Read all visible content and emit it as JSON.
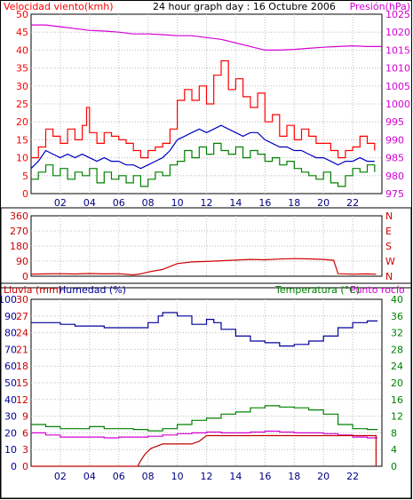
{
  "chart_data": [
    {
      "type": "line",
      "title": "24 hour graph day : 16 Octubre 2006",
      "left_label": "Velocidad viento(kmh)",
      "right_label": "Presión(hPa)",
      "x_ticks": [
        "02",
        "04",
        "06",
        "08",
        "10",
        "12",
        "14",
        "16",
        "18",
        "20",
        "22"
      ],
      "y_left_ticks": [
        "0",
        "5",
        "10",
        "15",
        "20",
        "25",
        "30",
        "35",
        "40",
        "45",
        "50"
      ],
      "y_left_range": [
        0,
        50
      ],
      "y_right_ticks": [
        "975",
        "980",
        "985",
        "990",
        "995",
        "1000",
        "1005",
        "1010",
        "1015",
        "1020",
        "1025"
      ],
      "y_right_range": [
        975,
        1025
      ],
      "x_range": [
        0,
        24
      ],
      "colors": {
        "gust": "#ff0000",
        "average": "#0000c0",
        "minimum": "#008000",
        "pressure": "#d400d4"
      },
      "gust": [
        [
          0,
          10
        ],
        [
          0.5,
          13
        ],
        [
          1,
          18
        ],
        [
          1.5,
          16
        ],
        [
          2,
          14
        ],
        [
          2.5,
          18
        ],
        [
          3,
          15
        ],
        [
          3.5,
          19
        ],
        [
          3.8,
          24
        ],
        [
          4,
          17
        ],
        [
          4.5,
          14
        ],
        [
          5,
          17
        ],
        [
          5.5,
          16
        ],
        [
          6,
          15
        ],
        [
          6.5,
          14
        ],
        [
          7,
          12
        ],
        [
          7.5,
          10
        ],
        [
          8,
          12
        ],
        [
          8.5,
          13
        ],
        [
          9,
          14
        ],
        [
          9.5,
          18
        ],
        [
          10,
          26
        ],
        [
          10.5,
          29
        ],
        [
          11,
          26
        ],
        [
          11.5,
          30
        ],
        [
          12,
          25
        ],
        [
          12.5,
          33
        ],
        [
          13,
          37
        ],
        [
          13.5,
          29
        ],
        [
          14,
          32
        ],
        [
          14.5,
          27
        ],
        [
          15,
          24
        ],
        [
          15.5,
          28
        ],
        [
          16,
          20
        ],
        [
          16.5,
          22
        ],
        [
          17,
          16
        ],
        [
          17.5,
          19
        ],
        [
          18,
          15
        ],
        [
          18.5,
          18
        ],
        [
          19,
          16
        ],
        [
          19.5,
          14
        ],
        [
          20,
          14
        ],
        [
          20.5,
          12
        ],
        [
          21,
          10
        ],
        [
          21.5,
          12
        ],
        [
          22,
          13
        ],
        [
          22.5,
          16
        ],
        [
          23,
          14
        ],
        [
          23.5,
          12
        ]
      ],
      "average": [
        [
          0,
          7
        ],
        [
          0.5,
          9
        ],
        [
          1,
          12
        ],
        [
          1.5,
          11
        ],
        [
          2,
          10
        ],
        [
          2.5,
          11
        ],
        [
          3,
          10
        ],
        [
          3.5,
          11
        ],
        [
          4,
          10
        ],
        [
          4.5,
          9
        ],
        [
          5,
          10
        ],
        [
          5.5,
          9
        ],
        [
          6,
          9
        ],
        [
          6.5,
          8
        ],
        [
          7,
          8
        ],
        [
          7.5,
          7
        ],
        [
          8,
          8
        ],
        [
          8.5,
          9
        ],
        [
          9,
          10
        ],
        [
          9.5,
          12
        ],
        [
          10,
          15
        ],
        [
          10.5,
          16
        ],
        [
          11,
          17
        ],
        [
          11.5,
          18
        ],
        [
          12,
          17
        ],
        [
          12.5,
          18
        ],
        [
          13,
          19
        ],
        [
          13.5,
          18
        ],
        [
          14,
          17
        ],
        [
          14.5,
          16
        ],
        [
          15,
          17
        ],
        [
          15.5,
          17
        ],
        [
          16,
          15
        ],
        [
          16.5,
          14
        ],
        [
          17,
          13
        ],
        [
          17.5,
          13
        ],
        [
          18,
          12
        ],
        [
          18.5,
          12
        ],
        [
          19,
          11
        ],
        [
          19.5,
          10
        ],
        [
          20,
          10
        ],
        [
          20.5,
          9
        ],
        [
          21,
          8
        ],
        [
          21.5,
          9
        ],
        [
          22,
          9
        ],
        [
          22.5,
          10
        ],
        [
          23,
          9
        ],
        [
          23.5,
          9
        ]
      ],
      "minimum": [
        [
          0,
          4
        ],
        [
          0.5,
          6
        ],
        [
          1,
          8
        ],
        [
          1.5,
          5
        ],
        [
          2,
          7
        ],
        [
          2.5,
          4
        ],
        [
          3,
          6
        ],
        [
          3.5,
          5
        ],
        [
          4,
          7
        ],
        [
          4.5,
          3
        ],
        [
          5,
          6
        ],
        [
          5.5,
          4
        ],
        [
          6,
          5
        ],
        [
          6.5,
          3
        ],
        [
          7,
          5
        ],
        [
          7.5,
          2
        ],
        [
          8,
          4
        ],
        [
          8.5,
          6
        ],
        [
          9,
          5
        ],
        [
          9.5,
          8
        ],
        [
          10,
          9
        ],
        [
          10.5,
          12
        ],
        [
          11,
          10
        ],
        [
          11.5,
          13
        ],
        [
          12,
          11
        ],
        [
          12.5,
          14
        ],
        [
          13,
          12
        ],
        [
          13.5,
          11
        ],
        [
          14,
          13
        ],
        [
          14.5,
          10
        ],
        [
          15,
          12
        ],
        [
          15.5,
          11
        ],
        [
          16,
          9
        ],
        [
          16.5,
          10
        ],
        [
          17,
          8
        ],
        [
          17.5,
          9
        ],
        [
          18,
          7
        ],
        [
          18.5,
          6
        ],
        [
          19,
          5
        ],
        [
          19.5,
          4
        ],
        [
          20,
          6
        ],
        [
          20.5,
          3
        ],
        [
          21,
          2
        ],
        [
          21.5,
          5
        ],
        [
          22,
          7
        ],
        [
          22.5,
          6
        ],
        [
          23,
          8
        ],
        [
          23.5,
          6
        ]
      ],
      "pressure": [
        [
          0,
          1022
        ],
        [
          1,
          1022
        ],
        [
          2,
          1021.5
        ],
        [
          3,
          1021
        ],
        [
          4,
          1020.5
        ],
        [
          5,
          1020.3
        ],
        [
          6,
          1020
        ],
        [
          7,
          1019.5
        ],
        [
          8,
          1019.5
        ],
        [
          9,
          1019.3
        ],
        [
          10,
          1019
        ],
        [
          11,
          1019
        ],
        [
          12,
          1018.5
        ],
        [
          13,
          1018
        ],
        [
          14,
          1017
        ],
        [
          15,
          1016
        ],
        [
          16,
          1015
        ],
        [
          17,
          1015
        ],
        [
          18,
          1015.2
        ],
        [
          19,
          1015.5
        ],
        [
          20,
          1015.8
        ],
        [
          21,
          1016
        ],
        [
          22,
          1016.2
        ],
        [
          23,
          1016
        ],
        [
          24,
          1016
        ]
      ]
    },
    {
      "type": "line",
      "title": "",
      "y_left_ticks": [
        "0",
        "90",
        "180",
        "270",
        "360"
      ],
      "y_left_range": [
        0,
        360
      ],
      "y_right_ticks": [
        "N",
        "W",
        "S",
        "E",
        "N"
      ],
      "x_range": [
        0,
        24
      ],
      "color": "#d00000",
      "direction": [
        [
          0,
          12
        ],
        [
          1,
          14
        ],
        [
          2,
          15
        ],
        [
          3,
          13
        ],
        [
          4,
          16
        ],
        [
          5,
          14
        ],
        [
          6,
          15
        ],
        [
          7,
          8
        ],
        [
          7.5,
          14
        ],
        [
          8,
          25
        ],
        [
          9,
          40
        ],
        [
          10,
          75
        ],
        [
          11,
          85
        ],
        [
          12,
          88
        ],
        [
          13,
          92
        ],
        [
          14,
          96
        ],
        [
          15,
          100
        ],
        [
          16,
          98
        ],
        [
          17,
          102
        ],
        [
          18,
          105
        ],
        [
          19,
          103
        ],
        [
          20,
          100
        ],
        [
          20.7,
          95
        ],
        [
          21,
          15
        ],
        [
          22,
          12
        ],
        [
          23,
          14
        ],
        [
          23.6,
          12
        ]
      ]
    },
    {
      "type": "line",
      "title": "",
      "labels": {
        "rain": "Lluvia (mm)",
        "humidity": "Humedad (%)",
        "temperature": "Temperatura (°C)",
        "dewpoint": "Punto rocío"
      },
      "rain_ticks": [
        "0",
        "3",
        "6",
        "9",
        "12",
        "15",
        "18",
        "21",
        "24",
        "27",
        "30"
      ],
      "humidity_ticks": [
        "0",
        "10",
        "20",
        "30",
        "40",
        "50",
        "60",
        "70",
        "80",
        "90",
        "100"
      ],
      "temp_ticks": [
        "0",
        "4",
        "8",
        "12",
        "16",
        "20",
        "24",
        "28",
        "32",
        "36",
        "40"
      ],
      "x_range": [
        0,
        24
      ],
      "colors": {
        "rain": "#c00000",
        "humidity": "#000099",
        "temperature": "#008000",
        "dewpoint": "#d400d4"
      },
      "humidity": [
        [
          0,
          86
        ],
        [
          1,
          86
        ],
        [
          2,
          85
        ],
        [
          3,
          84
        ],
        [
          4,
          84
        ],
        [
          5,
          83
        ],
        [
          6,
          83
        ],
        [
          7,
          83
        ],
        [
          8,
          86
        ],
        [
          8.7,
          90
        ],
        [
          9,
          92
        ],
        [
          10,
          90
        ],
        [
          11,
          85
        ],
        [
          12,
          88
        ],
        [
          12.5,
          86
        ],
        [
          13,
          82
        ],
        [
          14,
          78
        ],
        [
          15,
          75
        ],
        [
          16,
          74
        ],
        [
          17,
          72
        ],
        [
          18,
          73
        ],
        [
          19,
          75
        ],
        [
          20,
          78
        ],
        [
          21,
          83
        ],
        [
          22,
          86
        ],
        [
          23,
          87
        ],
        [
          23.7,
          87
        ]
      ],
      "temperature": [
        [
          0,
          10
        ],
        [
          1,
          9.5
        ],
        [
          2,
          9
        ],
        [
          3,
          9
        ],
        [
          4,
          9.5
        ],
        [
          5,
          9
        ],
        [
          6,
          9
        ],
        [
          7,
          8.8
        ],
        [
          8,
          8.5
        ],
        [
          9,
          9
        ],
        [
          10,
          10
        ],
        [
          11,
          11
        ],
        [
          12,
          11.5
        ],
        [
          13,
          12.5
        ],
        [
          14,
          13
        ],
        [
          15,
          14
        ],
        [
          16,
          14.5
        ],
        [
          17,
          14.2
        ],
        [
          18,
          14
        ],
        [
          19,
          13.5
        ],
        [
          20,
          12.5
        ],
        [
          21,
          10
        ],
        [
          22,
          9
        ],
        [
          23,
          8.8
        ],
        [
          23.7,
          8.8
        ]
      ],
      "dewpoint": [
        [
          0,
          8
        ],
        [
          1,
          7.5
        ],
        [
          2,
          7
        ],
        [
          3,
          7
        ],
        [
          4,
          7
        ],
        [
          5,
          6.8
        ],
        [
          6,
          7
        ],
        [
          7,
          7
        ],
        [
          8,
          7.2
        ],
        [
          9,
          7.5
        ],
        [
          10,
          7.8
        ],
        [
          11,
          8
        ],
        [
          12,
          8.2
        ],
        [
          13,
          8
        ],
        [
          14,
          8
        ],
        [
          15,
          8.2
        ],
        [
          16,
          8.4
        ],
        [
          17,
          8.2
        ],
        [
          18,
          8
        ],
        [
          19,
          8
        ],
        [
          20,
          7.8
        ],
        [
          21,
          7.5
        ],
        [
          22,
          7
        ],
        [
          23,
          6.8
        ],
        [
          23.7,
          6.8
        ]
      ],
      "rain": [
        [
          0,
          0
        ],
        [
          7.3,
          0
        ],
        [
          7.5,
          1
        ],
        [
          7.8,
          2.2
        ],
        [
          8.2,
          3.2
        ],
        [
          8.8,
          3.8
        ],
        [
          9,
          4
        ],
        [
          10,
          4
        ],
        [
          11,
          4
        ],
        [
          11.5,
          4.5
        ],
        [
          12,
          5.5
        ],
        [
          13,
          5.5
        ],
        [
          16,
          5.5
        ],
        [
          23.6,
          5.5
        ],
        [
          23.6,
          0
        ]
      ]
    }
  ]
}
